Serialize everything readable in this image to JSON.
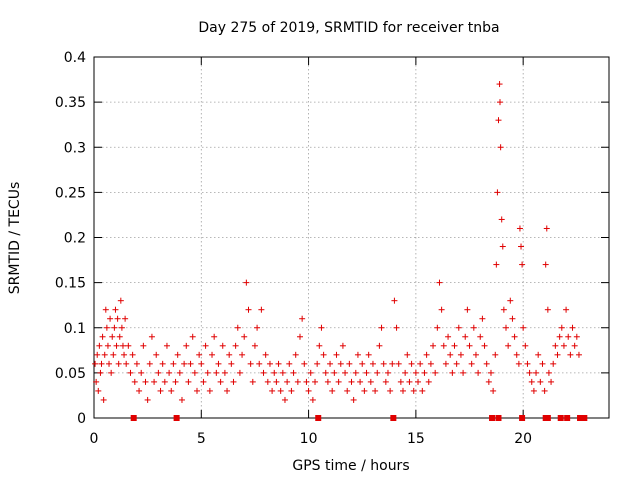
{
  "chart_data": {
    "type": "scatter",
    "title": "Day 275 of 2019, SRMTID for receiver tnba",
    "xlabel": "GPS time / hours",
    "ylabel": "SRMTID / TECUs",
    "xlim": [
      0,
      24
    ],
    "ylim": [
      0,
      0.4
    ],
    "xticks": [
      0,
      5,
      10,
      15,
      20
    ],
    "xtick_labels": [
      "0",
      "5",
      "10",
      "15",
      "20"
    ],
    "yticks": [
      0,
      0.05,
      0.1,
      0.15,
      0.2,
      0.25,
      0.3,
      0.35,
      0.4
    ],
    "ytick_labels": [
      "0",
      "0.05",
      "0.1",
      "0.15",
      "0.2",
      "0.25",
      "0.3",
      "0.35",
      "0.4"
    ],
    "grid": true,
    "marker": "+",
    "color": "#e00000",
    "points": [
      [
        0.05,
        0.06
      ],
      [
        0.1,
        0.04
      ],
      [
        0.15,
        0.07
      ],
      [
        0.2,
        0.03
      ],
      [
        0.25,
        0.08
      ],
      [
        0.3,
        0.05
      ],
      [
        0.35,
        0.06
      ],
      [
        0.4,
        0.09
      ],
      [
        0.45,
        0.02
      ],
      [
        0.5,
        0.07
      ],
      [
        0.55,
        0.12
      ],
      [
        0.6,
        0.1
      ],
      [
        0.65,
        0.08
      ],
      [
        0.7,
        0.06
      ],
      [
        0.75,
        0.11
      ],
      [
        0.8,
        0.05
      ],
      [
        0.85,
        0.09
      ],
      [
        0.9,
        0.07
      ],
      [
        0.95,
        0.1
      ],
      [
        1.0,
        0.12
      ],
      [
        1.05,
        0.08
      ],
      [
        1.1,
        0.11
      ],
      [
        1.15,
        0.06
      ],
      [
        1.2,
        0.09
      ],
      [
        1.25,
        0.13
      ],
      [
        1.3,
        0.1
      ],
      [
        1.35,
        0.08
      ],
      [
        1.4,
        0.07
      ],
      [
        1.45,
        0.11
      ],
      [
        1.5,
        0.06
      ],
      [
        1.6,
        0.08
      ],
      [
        1.7,
        0.05
      ],
      [
        1.8,
        0.07
      ],
      [
        1.9,
        0.04
      ],
      [
        2.0,
        0.06
      ],
      [
        2.1,
        0.03
      ],
      [
        2.2,
        0.05
      ],
      [
        2.3,
        0.08
      ],
      [
        2.4,
        0.04
      ],
      [
        2.5,
        0.02
      ],
      [
        2.6,
        0.06
      ],
      [
        2.7,
        0.09
      ],
      [
        2.8,
        0.04
      ],
      [
        2.9,
        0.07
      ],
      [
        3.0,
        0.05
      ],
      [
        3.1,
        0.03
      ],
      [
        3.2,
        0.06
      ],
      [
        3.3,
        0.04
      ],
      [
        3.4,
        0.08
      ],
      [
        3.5,
        0.05
      ],
      [
        3.6,
        0.03
      ],
      [
        3.7,
        0.06
      ],
      [
        3.8,
        0.04
      ],
      [
        3.9,
        0.07
      ],
      [
        4.0,
        0.05
      ],
      [
        4.1,
        0.02
      ],
      [
        4.2,
        0.06
      ],
      [
        4.3,
        0.08
      ],
      [
        4.4,
        0.04
      ],
      [
        4.5,
        0.06
      ],
      [
        4.6,
        0.09
      ],
      [
        4.7,
        0.05
      ],
      [
        4.8,
        0.03
      ],
      [
        4.9,
        0.07
      ],
      [
        5.0,
        0.06
      ],
      [
        5.1,
        0.04
      ],
      [
        5.2,
        0.08
      ],
      [
        5.3,
        0.05
      ],
      [
        5.4,
        0.03
      ],
      [
        5.5,
        0.07
      ],
      [
        5.6,
        0.09
      ],
      [
        5.7,
        0.05
      ],
      [
        5.8,
        0.06
      ],
      [
        5.9,
        0.04
      ],
      [
        6.0,
        0.08
      ],
      [
        6.1,
        0.05
      ],
      [
        6.2,
        0.03
      ],
      [
        6.3,
        0.07
      ],
      [
        6.4,
        0.06
      ],
      [
        6.5,
        0.04
      ],
      [
        6.6,
        0.08
      ],
      [
        6.7,
        0.1
      ],
      [
        6.8,
        0.05
      ],
      [
        6.9,
        0.07
      ],
      [
        7.0,
        0.09
      ],
      [
        7.1,
        0.15
      ],
      [
        7.2,
        0.12
      ],
      [
        7.3,
        0.06
      ],
      [
        7.4,
        0.04
      ],
      [
        7.5,
        0.08
      ],
      [
        7.6,
        0.1
      ],
      [
        7.7,
        0.06
      ],
      [
        7.8,
        0.12
      ],
      [
        7.9,
        0.05
      ],
      [
        8.0,
        0.07
      ],
      [
        8.1,
        0.04
      ],
      [
        8.2,
        0.06
      ],
      [
        8.3,
        0.03
      ],
      [
        8.4,
        0.05
      ],
      [
        8.5,
        0.04
      ],
      [
        8.6,
        0.06
      ],
      [
        8.7,
        0.03
      ],
      [
        8.8,
        0.05
      ],
      [
        8.9,
        0.02
      ],
      [
        9.0,
        0.04
      ],
      [
        9.1,
        0.06
      ],
      [
        9.2,
        0.03
      ],
      [
        9.3,
        0.05
      ],
      [
        9.4,
        0.07
      ],
      [
        9.5,
        0.04
      ],
      [
        9.6,
        0.09
      ],
      [
        9.7,
        0.11
      ],
      [
        9.8,
        0.06
      ],
      [
        9.9,
        0.04
      ],
      [
        10.0,
        0.03
      ],
      [
        10.1,
        0.05
      ],
      [
        10.2,
        0.02
      ],
      [
        10.3,
        0.04
      ],
      [
        10.4,
        0.06
      ],
      [
        10.5,
        0.08
      ],
      [
        10.6,
        0.1
      ],
      [
        10.7,
        0.07
      ],
      [
        10.8,
        0.05
      ],
      [
        10.9,
        0.04
      ],
      [
        11.0,
        0.06
      ],
      [
        11.1,
        0.03
      ],
      [
        11.2,
        0.05
      ],
      [
        11.3,
        0.07
      ],
      [
        11.4,
        0.04
      ],
      [
        11.5,
        0.06
      ],
      [
        11.6,
        0.08
      ],
      [
        11.7,
        0.05
      ],
      [
        11.8,
        0.03
      ],
      [
        11.9,
        0.06
      ],
      [
        12.0,
        0.04
      ],
      [
        12.1,
        0.02
      ],
      [
        12.2,
        0.05
      ],
      [
        12.3,
        0.07
      ],
      [
        12.4,
        0.04
      ],
      [
        12.5,
        0.06
      ],
      [
        12.6,
        0.03
      ],
      [
        12.7,
        0.05
      ],
      [
        12.8,
        0.07
      ],
      [
        12.9,
        0.04
      ],
      [
        13.0,
        0.06
      ],
      [
        13.1,
        0.03
      ],
      [
        13.2,
        0.05
      ],
      [
        13.3,
        0.08
      ],
      [
        13.4,
        0.1
      ],
      [
        13.5,
        0.06
      ],
      [
        13.6,
        0.04
      ],
      [
        13.7,
        0.05
      ],
      [
        13.8,
        0.03
      ],
      [
        13.9,
        0.06
      ],
      [
        14.0,
        0.13
      ],
      [
        14.1,
        0.1
      ],
      [
        14.2,
        0.06
      ],
      [
        14.3,
        0.04
      ],
      [
        14.4,
        0.03
      ],
      [
        14.5,
        0.05
      ],
      [
        14.6,
        0.07
      ],
      [
        14.7,
        0.04
      ],
      [
        14.8,
        0.06
      ],
      [
        14.9,
        0.03
      ],
      [
        15.0,
        0.05
      ],
      [
        15.1,
        0.04
      ],
      [
        15.2,
        0.06
      ],
      [
        15.3,
        0.03
      ],
      [
        15.4,
        0.05
      ],
      [
        15.5,
        0.07
      ],
      [
        15.6,
        0.04
      ],
      [
        15.7,
        0.06
      ],
      [
        15.8,
        0.08
      ],
      [
        15.9,
        0.05
      ],
      [
        16.0,
        0.1
      ],
      [
        16.1,
        0.15
      ],
      [
        16.2,
        0.12
      ],
      [
        16.3,
        0.08
      ],
      [
        16.4,
        0.06
      ],
      [
        16.5,
        0.09
      ],
      [
        16.6,
        0.07
      ],
      [
        16.7,
        0.05
      ],
      [
        16.8,
        0.08
      ],
      [
        16.9,
        0.06
      ],
      [
        17.0,
        0.1
      ],
      [
        17.1,
        0.07
      ],
      [
        17.2,
        0.05
      ],
      [
        17.3,
        0.09
      ],
      [
        17.4,
        0.12
      ],
      [
        17.5,
        0.08
      ],
      [
        17.6,
        0.06
      ],
      [
        17.7,
        0.1
      ],
      [
        17.8,
        0.07
      ],
      [
        17.9,
        0.05
      ],
      [
        18.0,
        0.09
      ],
      [
        18.1,
        0.11
      ],
      [
        18.2,
        0.08
      ],
      [
        18.3,
        0.06
      ],
      [
        18.4,
        0.04
      ],
      [
        18.5,
        0.05
      ],
      [
        18.6,
        0.03
      ],
      [
        18.7,
        0.07
      ],
      [
        18.75,
        0.17
      ],
      [
        18.8,
        0.25
      ],
      [
        18.85,
        0.33
      ],
      [
        18.9,
        0.37
      ],
      [
        18.92,
        0.35
      ],
      [
        18.95,
        0.3
      ],
      [
        19.0,
        0.22
      ],
      [
        19.05,
        0.19
      ],
      [
        19.1,
        0.12
      ],
      [
        19.2,
        0.1
      ],
      [
        19.3,
        0.08
      ],
      [
        19.4,
        0.13
      ],
      [
        19.5,
        0.11
      ],
      [
        19.6,
        0.09
      ],
      [
        19.7,
        0.07
      ],
      [
        19.8,
        0.06
      ],
      [
        19.85,
        0.21
      ],
      [
        19.9,
        0.19
      ],
      [
        19.95,
        0.17
      ],
      [
        20.0,
        0.1
      ],
      [
        20.1,
        0.08
      ],
      [
        20.2,
        0.06
      ],
      [
        20.3,
        0.05
      ],
      [
        20.4,
        0.04
      ],
      [
        20.5,
        0.03
      ],
      [
        20.6,
        0.05
      ],
      [
        20.7,
        0.07
      ],
      [
        20.8,
        0.04
      ],
      [
        20.9,
        0.06
      ],
      [
        21.0,
        0.03
      ],
      [
        21.05,
        0.17
      ],
      [
        21.1,
        0.21
      ],
      [
        21.15,
        0.12
      ],
      [
        21.2,
        0.05
      ],
      [
        21.3,
        0.04
      ],
      [
        21.4,
        0.06
      ],
      [
        21.5,
        0.08
      ],
      [
        21.6,
        0.07
      ],
      [
        21.7,
        0.09
      ],
      [
        21.8,
        0.1
      ],
      [
        21.9,
        0.08
      ],
      [
        22.0,
        0.12
      ],
      [
        22.1,
        0.09
      ],
      [
        22.2,
        0.07
      ],
      [
        22.3,
        0.1
      ],
      [
        22.4,
        0.08
      ],
      [
        22.5,
        0.09
      ],
      [
        22.6,
        0.07
      ]
    ],
    "gap_markers_x": [
      1.85,
      3.85,
      10.45,
      13.95,
      18.55,
      18.85,
      19.95,
      21.05,
      21.15,
      21.75,
      22.05,
      22.65,
      22.85
    ]
  }
}
